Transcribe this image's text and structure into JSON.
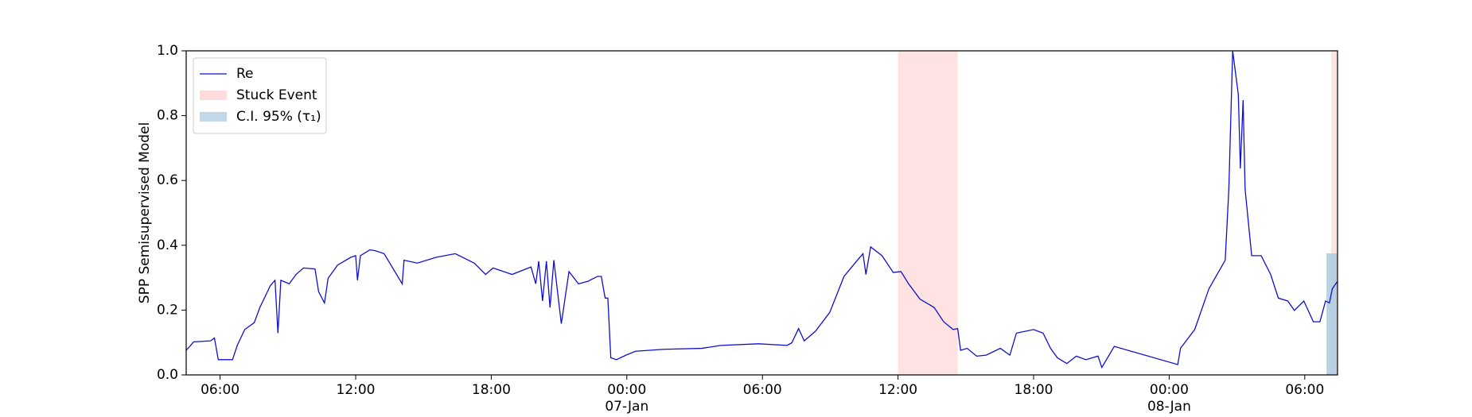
{
  "chart_data": {
    "type": "line",
    "ylabel": "SPP Semisupervised Model",
    "x": [
      4.5,
      4.66,
      4.83,
      5.58,
      5.75,
      5.92,
      6.55,
      6.76,
      7.09,
      7.51,
      7.76,
      8.22,
      8.43,
      8.56,
      8.69,
      9.06,
      9.36,
      9.69,
      10.2,
      10.36,
      10.62,
      10.78,
      11.2,
      11.79,
      12.0,
      12.08,
      12.21,
      12.63,
      12.88,
      13.26,
      14.06,
      14.14,
      14.73,
      15.57,
      16.41,
      17.25,
      17.75,
      18.08,
      18.92,
      19.76,
      19.97,
      20.1,
      20.27,
      20.44,
      20.6,
      20.77,
      21.1,
      21.44,
      21.86,
      22.28,
      22.7,
      22.87,
      23.04,
      23.16,
      23.29,
      23.54,
      23.96,
      24.38,
      25.64,
      27.32,
      28.16,
      29.83,
      31.09,
      31.3,
      31.6,
      31.85,
      32.35,
      32.98,
      33.61,
      34.24,
      34.45,
      34.58,
      34.79,
      35.29,
      35.79,
      36.13,
      36.47,
      36.97,
      37.6,
      38.02,
      38.44,
      38.64,
      38.77,
      39.06,
      39.48,
      39.9,
      40.53,
      40.95,
      41.24,
      42.0,
      42.42,
      42.75,
      43.05,
      43.47,
      43.89,
      44.31,
      44.85,
      45.02,
      45.57,
      48.38,
      48.5,
      49.13,
      49.76,
      50.48,
      50.64,
      50.81,
      51.06,
      51.15,
      51.27,
      51.36,
      51.65,
      52.07,
      52.49,
      52.83,
      53.25,
      53.54,
      53.96,
      54.38,
      54.67,
      54.92,
      55.09,
      55.22,
      55.43
    ],
    "series": [
      {
        "name": "Re",
        "color": "#1010cc",
        "values": [
          0.076,
          0.088,
          0.102,
          0.105,
          0.114,
          0.047,
          0.047,
          0.091,
          0.14,
          0.161,
          0.208,
          0.275,
          0.292,
          0.129,
          0.292,
          0.281,
          0.31,
          0.33,
          0.327,
          0.257,
          0.222,
          0.298,
          0.339,
          0.363,
          0.368,
          0.292,
          0.368,
          0.386,
          0.383,
          0.374,
          0.281,
          0.354,
          0.345,
          0.363,
          0.374,
          0.345,
          0.31,
          0.33,
          0.31,
          0.333,
          0.281,
          0.351,
          0.228,
          0.351,
          0.208,
          0.354,
          0.158,
          0.319,
          0.281,
          0.289,
          0.304,
          0.304,
          0.237,
          0.237,
          0.053,
          0.047,
          0.061,
          0.073,
          0.079,
          0.082,
          0.091,
          0.096,
          0.091,
          0.099,
          0.143,
          0.105,
          0.135,
          0.193,
          0.304,
          0.357,
          0.374,
          0.31,
          0.395,
          0.368,
          0.316,
          0.319,
          0.281,
          0.234,
          0.208,
          0.164,
          0.14,
          0.143,
          0.076,
          0.082,
          0.058,
          0.061,
          0.082,
          0.061,
          0.129,
          0.14,
          0.129,
          0.082,
          0.053,
          0.035,
          0.058,
          0.047,
          0.058,
          0.023,
          0.088,
          0.032,
          0.082,
          0.14,
          0.266,
          0.354,
          0.573,
          1.0,
          0.865,
          0.637,
          0.848,
          0.573,
          0.368,
          0.368,
          0.31,
          0.237,
          0.228,
          0.199,
          0.228,
          0.164,
          0.164,
          0.228,
          0.222,
          0.266,
          0.287
        ]
      }
    ],
    "regions": [
      {
        "name": "Stuck Event",
        "color": "#ffcccc",
        "spans": [
          [
            36.0,
            38.64
          ],
          [
            55.17,
            55.45
          ]
        ]
      },
      {
        "name": "C.I. 95% (τ₁)",
        "color": "#a8c8e0",
        "spans": [
          [
            54.96,
            55.45
          ]
        ],
        "y_range": [
          0,
          0.375
        ]
      }
    ],
    "xlim": [
      4.5,
      55.45
    ],
    "xticks": [
      {
        "value": 6,
        "label": "06:00"
      },
      {
        "value": 12,
        "label": "12:00"
      },
      {
        "value": 18,
        "label": "18:00"
      },
      {
        "value": 24,
        "label": "00:00\n07-Jan\n1900"
      },
      {
        "value": 30,
        "label": "06:00"
      },
      {
        "value": 36,
        "label": "12:00"
      },
      {
        "value": 42,
        "label": "18:00"
      },
      {
        "value": 48,
        "label": "00:00\n08-Jan"
      },
      {
        "value": 54,
        "label": "06:00"
      }
    ],
    "ylim": [
      0,
      1
    ],
    "yticks": [
      {
        "value": 0,
        "label": "0.0"
      },
      {
        "value": 0.2,
        "label": "0.2"
      },
      {
        "value": 0.4,
        "label": "0.4"
      },
      {
        "value": 0.6,
        "label": "0.6"
      },
      {
        "value": 0.8,
        "label": "0.8"
      },
      {
        "value": 1,
        "label": "1.0"
      }
    ],
    "grid": false,
    "legend": "upper left"
  }
}
